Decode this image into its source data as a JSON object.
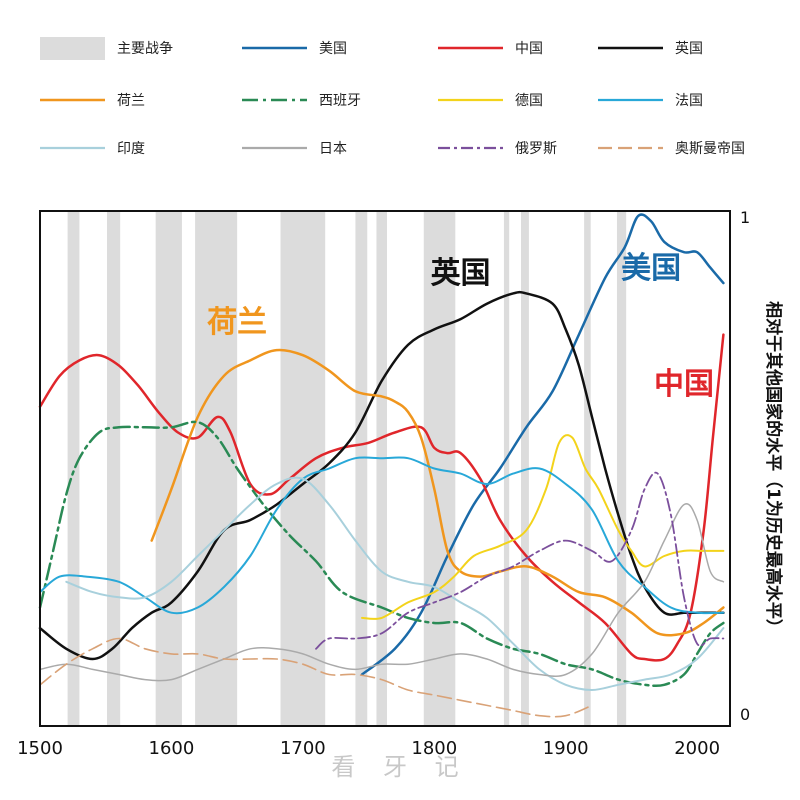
{
  "watermark": "看 牙 记",
  "chart_data": {
    "type": "line",
    "ylabel": "相对于其他国家的水平（1为历史最高水平）",
    "xlim": [
      1500,
      2025
    ],
    "ylim": [
      0,
      1
    ],
    "x_ticks": [
      1500,
      1600,
      1700,
      1800,
      1900,
      2000
    ],
    "y_ticks": [
      0,
      1
    ],
    "grid": false,
    "legend_position": "top",
    "wars_label": "主要战争",
    "wars_color": "#dcdcdc",
    "wars": [
      [
        1521,
        1530
      ],
      [
        1551,
        1561
      ],
      [
        1588,
        1608
      ],
      [
        1618,
        1650
      ],
      [
        1683,
        1717
      ],
      [
        1740,
        1749
      ],
      [
        1756,
        1764
      ],
      [
        1792,
        1816
      ],
      [
        1853,
        1857
      ],
      [
        1866,
        1872
      ],
      [
        1914,
        1919
      ],
      [
        1939,
        1946
      ]
    ],
    "annotations": [
      {
        "text": "荷兰",
        "x": 1650,
        "y": 0.765,
        "color": "#f0961e"
      },
      {
        "text": "英国",
        "x": 1820,
        "y": 0.86,
        "color": "#111111"
      },
      {
        "text": "美国",
        "x": 1965,
        "y": 0.87,
        "color": "#1a6aa8"
      },
      {
        "text": "中国",
        "x": 1990,
        "y": 0.645,
        "color": "#e0262b"
      }
    ],
    "series": [
      {
        "name": "美国",
        "color": "#1a6aa8",
        "dash": "",
        "width": 2.5,
        "x": [
          1745,
          1770,
          1790,
          1810,
          1830,
          1850,
          1870,
          1890,
          1910,
          1930,
          1945,
          1955,
          1965,
          1975,
          1990,
          2000,
          2010,
          2020
        ],
        "y": [
          0.1,
          0.15,
          0.22,
          0.33,
          0.43,
          0.5,
          0.58,
          0.65,
          0.76,
          0.87,
          0.93,
          0.99,
          0.98,
          0.94,
          0.92,
          0.92,
          0.89,
          0.86
        ]
      },
      {
        "name": "中国",
        "color": "#e0262b",
        "dash": "",
        "width": 2.5,
        "x": [
          1500,
          1515,
          1530,
          1545,
          1560,
          1575,
          1590,
          1605,
          1620,
          1635,
          1645,
          1660,
          1675,
          1690,
          1710,
          1730,
          1750,
          1770,
          1790,
          1800,
          1810,
          1820,
          1835,
          1850,
          1870,
          1890,
          1910,
          1930,
          1950,
          1960,
          1975,
          1985,
          1995,
          2005,
          2012,
          2020
        ],
        "y": [
          0.62,
          0.68,
          0.71,
          0.72,
          0.7,
          0.66,
          0.61,
          0.57,
          0.56,
          0.6,
          0.57,
          0.47,
          0.45,
          0.48,
          0.52,
          0.54,
          0.55,
          0.57,
          0.58,
          0.54,
          0.53,
          0.53,
          0.48,
          0.4,
          0.33,
          0.28,
          0.24,
          0.2,
          0.14,
          0.13,
          0.13,
          0.16,
          0.22,
          0.38,
          0.56,
          0.76
        ]
      },
      {
        "name": "英国",
        "color": "#111111",
        "dash": "",
        "width": 2.5,
        "x": [
          1500,
          1520,
          1540,
          1555,
          1570,
          1585,
          1600,
          1620,
          1640,
          1660,
          1680,
          1700,
          1720,
          1740,
          1760,
          1780,
          1800,
          1820,
          1840,
          1860,
          1870,
          1890,
          1900,
          1910,
          1920,
          1930,
          1940,
          1950,
          1960,
          1975,
          1990,
          2000,
          2010,
          2020
        ],
        "y": [
          0.19,
          0.15,
          0.13,
          0.15,
          0.19,
          0.22,
          0.24,
          0.3,
          0.38,
          0.4,
          0.43,
          0.47,
          0.51,
          0.57,
          0.67,
          0.74,
          0.77,
          0.79,
          0.82,
          0.84,
          0.84,
          0.82,
          0.77,
          0.7,
          0.6,
          0.5,
          0.41,
          0.33,
          0.27,
          0.22,
          0.22,
          0.22,
          0.22,
          0.22
        ]
      },
      {
        "name": "荷兰",
        "color": "#f0961e",
        "dash": "",
        "width": 2.5,
        "x": [
          1585,
          1600,
          1620,
          1640,
          1660,
          1680,
          1700,
          1720,
          1740,
          1760,
          1770,
          1780,
          1790,
          1800,
          1810,
          1820,
          1835,
          1850,
          1870,
          1890,
          1910,
          1930,
          1950,
          1970,
          1990,
          2005,
          2020
        ],
        "y": [
          0.36,
          0.46,
          0.6,
          0.68,
          0.71,
          0.73,
          0.72,
          0.69,
          0.65,
          0.64,
          0.63,
          0.61,
          0.56,
          0.46,
          0.34,
          0.3,
          0.29,
          0.3,
          0.31,
          0.29,
          0.26,
          0.25,
          0.22,
          0.18,
          0.18,
          0.2,
          0.23
        ]
      },
      {
        "name": "西班牙",
        "color": "#2a8a55",
        "dash": "16 5 3 5",
        "width": 2.5,
        "x": [
          1500,
          1510,
          1520,
          1530,
          1545,
          1560,
          1580,
          1600,
          1620,
          1635,
          1650,
          1670,
          1690,
          1710,
          1730,
          1760,
          1780,
          1800,
          1820,
          1840,
          1860,
          1880,
          1900,
          1920,
          1940,
          1960,
          1975,
          1990,
          2000,
          2010,
          2020
        ],
        "y": [
          0.23,
          0.34,
          0.45,
          0.52,
          0.57,
          0.58,
          0.58,
          0.58,
          0.59,
          0.56,
          0.5,
          0.43,
          0.37,
          0.32,
          0.26,
          0.23,
          0.21,
          0.2,
          0.2,
          0.17,
          0.15,
          0.14,
          0.12,
          0.11,
          0.09,
          0.08,
          0.08,
          0.1,
          0.14,
          0.18,
          0.2
        ]
      },
      {
        "name": "德国",
        "color": "#f3d31b",
        "dash": "",
        "width": 2.0,
        "x": [
          1745,
          1760,
          1780,
          1800,
          1815,
          1830,
          1850,
          1870,
          1885,
          1895,
          1905,
          1915,
          1925,
          1940,
          1950,
          1960,
          1975,
          1990,
          2005,
          2020
        ],
        "y": [
          0.21,
          0.21,
          0.24,
          0.26,
          0.29,
          0.33,
          0.35,
          0.38,
          0.46,
          0.55,
          0.56,
          0.5,
          0.46,
          0.38,
          0.34,
          0.31,
          0.33,
          0.34,
          0.34,
          0.34
        ]
      },
      {
        "name": "法国",
        "color": "#28a8d8",
        "dash": "",
        "width": 2.0,
        "x": [
          1500,
          1515,
          1535,
          1560,
          1580,
          1600,
          1620,
          1640,
          1660,
          1680,
          1700,
          1720,
          1740,
          1760,
          1780,
          1800,
          1820,
          1840,
          1860,
          1880,
          1900,
          1920,
          1940,
          1960,
          1980,
          2000,
          2020
        ],
        "y": [
          0.26,
          0.29,
          0.29,
          0.28,
          0.25,
          0.22,
          0.23,
          0.27,
          0.33,
          0.42,
          0.48,
          0.5,
          0.52,
          0.52,
          0.52,
          0.5,
          0.49,
          0.47,
          0.49,
          0.5,
          0.47,
          0.42,
          0.32,
          0.27,
          0.23,
          0.22,
          0.22
        ]
      },
      {
        "name": "印度",
        "color": "#a8d0dc",
        "dash": "",
        "width": 2.0,
        "x": [
          1520,
          1540,
          1560,
          1580,
          1600,
          1620,
          1640,
          1660,
          1680,
          1700,
          1720,
          1740,
          1760,
          1780,
          1800,
          1820,
          1840,
          1860,
          1880,
          1900,
          1920,
          1940,
          1960,
          1980,
          2000,
          2020
        ],
        "y": [
          0.28,
          0.26,
          0.25,
          0.25,
          0.28,
          0.33,
          0.38,
          0.43,
          0.47,
          0.48,
          0.43,
          0.36,
          0.3,
          0.28,
          0.27,
          0.24,
          0.21,
          0.16,
          0.11,
          0.08,
          0.07,
          0.08,
          0.09,
          0.1,
          0.13,
          0.19
        ]
      },
      {
        "name": "日本",
        "color": "#aaaaaa",
        "dash": "",
        "width": 1.5,
        "x": [
          1500,
          1520,
          1540,
          1560,
          1580,
          1600,
          1620,
          1640,
          1660,
          1680,
          1700,
          1720,
          1740,
          1760,
          1780,
          1800,
          1820,
          1840,
          1860,
          1880,
          1900,
          1920,
          1940,
          1960,
          1975,
          1990,
          2000,
          2010,
          2020
        ],
        "y": [
          0.11,
          0.12,
          0.11,
          0.1,
          0.09,
          0.09,
          0.11,
          0.13,
          0.15,
          0.15,
          0.14,
          0.12,
          0.11,
          0.12,
          0.12,
          0.13,
          0.14,
          0.13,
          0.11,
          0.1,
          0.1,
          0.14,
          0.22,
          0.28,
          0.36,
          0.43,
          0.4,
          0.3,
          0.28
        ]
      },
      {
        "name": "俄罗斯",
        "color": "#7b4f9c",
        "dash": "12 4 3 4",
        "width": 1.8,
        "x": [
          1710,
          1720,
          1740,
          1760,
          1780,
          1800,
          1820,
          1840,
          1860,
          1880,
          1900,
          1920,
          1935,
          1950,
          1960,
          1970,
          1980,
          1990,
          2000,
          2010,
          2020
        ],
        "y": [
          0.15,
          0.17,
          0.17,
          0.18,
          0.22,
          0.24,
          0.26,
          0.29,
          0.31,
          0.34,
          0.36,
          0.34,
          0.32,
          0.38,
          0.46,
          0.49,
          0.41,
          0.25,
          0.16,
          0.17,
          0.17
        ]
      },
      {
        "name": "奥斯曼帝国",
        "color": "#d9a277",
        "dash": "14 6",
        "width": 1.6,
        "x": [
          1500,
          1520,
          1540,
          1560,
          1580,
          1600,
          1620,
          1640,
          1660,
          1680,
          1700,
          1720,
          1740,
          1760,
          1780,
          1800,
          1820,
          1840,
          1860,
          1880,
          1900,
          1920
        ],
        "y": [
          0.08,
          0.12,
          0.15,
          0.17,
          0.15,
          0.14,
          0.14,
          0.13,
          0.13,
          0.13,
          0.12,
          0.1,
          0.1,
          0.09,
          0.07,
          0.06,
          0.05,
          0.04,
          0.03,
          0.02,
          0.02,
          0.04
        ]
      }
    ]
  }
}
